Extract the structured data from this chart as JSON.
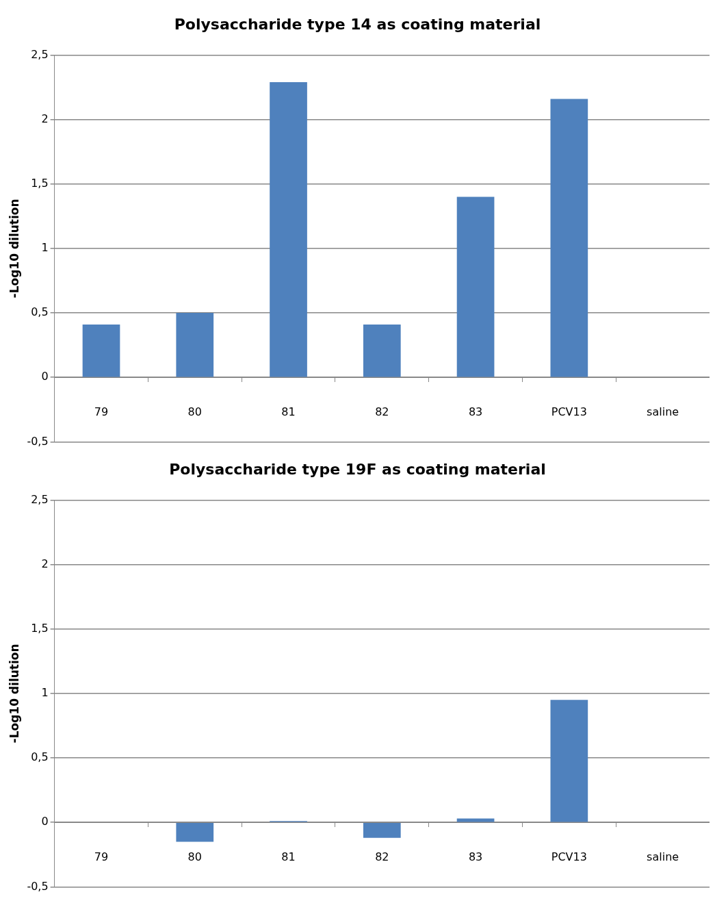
{
  "chart_data": [
    {
      "type": "bar",
      "title": "Polysaccharide type 14 as coating material",
      "ylabel": "-Log10 dilution",
      "categories": [
        "79",
        "80",
        "81",
        "82",
        "83",
        "PCV13",
        "saline"
      ],
      "values": [
        0.41,
        0.5,
        2.29,
        0.41,
        1.4,
        2.16,
        0
      ],
      "color": "#4f81bd",
      "ylim": [
        -0.5,
        2.5
      ],
      "yticks": [
        {
          "value": -0.5,
          "label": "-0,5"
        },
        0,
        {
          "value": 0.5,
          "label": "0,5"
        },
        1,
        {
          "value": 1.5,
          "label": "1,5"
        },
        2,
        {
          "value": 2.5,
          "label": "2,5"
        }
      ],
      "grid": "y",
      "legend": false
    },
    {
      "type": "bar",
      "title": "Polysaccharide type 19F as coating material",
      "ylabel": "-Log10 dilution",
      "categories": [
        "79",
        "80",
        "81",
        "82",
        "83",
        "PCV13",
        "saline"
      ],
      "values": [
        0,
        -0.15,
        0.01,
        -0.12,
        0.03,
        0.95,
        0
      ],
      "color": "#4f81bd",
      "ylim": [
        -0.5,
        2.5
      ],
      "yticks": [
        {
          "value": -0.5,
          "label": "-0,5"
        },
        0,
        {
          "value": 0.5,
          "label": "0,5"
        },
        1,
        {
          "value": 1.5,
          "label": "1,5"
        },
        2,
        {
          "value": 2.5,
          "label": "2,5"
        }
      ],
      "grid": "y",
      "legend": false
    }
  ]
}
